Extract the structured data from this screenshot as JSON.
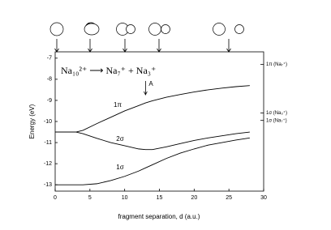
{
  "chart_data": {
    "type": "line",
    "formula": "Na₁₀²⁺ ⟶ Na₇⁺ + Na₃⁺",
    "xlabel": "fragment separation, d (a.u.)",
    "ylabel": "Energy (eV)",
    "x": [
      0,
      2,
      3,
      4,
      6,
      8,
      10,
      12,
      13,
      14,
      16,
      18,
      20,
      22,
      24,
      26,
      28
    ],
    "series": [
      {
        "name": "1π",
        "color": "#000000",
        "values": [
          -10.5,
          -10.5,
          -10.5,
          -10.42,
          -10.1,
          -9.8,
          -9.5,
          -9.25,
          -9.12,
          -9.02,
          -8.85,
          -8.72,
          -8.6,
          -8.5,
          -8.42,
          -8.35,
          -8.3
        ]
      },
      {
        "name": "2σ",
        "color": "#000000",
        "values": [
          -10.5,
          -10.5,
          -10.5,
          -10.58,
          -10.8,
          -11.0,
          -11.15,
          -11.3,
          -11.33,
          -11.33,
          -11.2,
          -11.05,
          -10.9,
          -10.78,
          -10.68,
          -10.58,
          -10.5
        ]
      },
      {
        "name": "1σ",
        "color": "#000000",
        "values": [
          -13,
          -13,
          -13,
          -13,
          -12.95,
          -12.8,
          -12.6,
          -12.35,
          -12.2,
          -12.05,
          -11.75,
          -11.5,
          -11.3,
          -11.12,
          -11.0,
          -10.88,
          -10.78
        ]
      }
    ],
    "right_markers": [
      {
        "label": "1π (Na₇⁺)",
        "value": -7.3
      },
      {
        "label": "1σ (Na₃⁺)",
        "value": -9.6
      },
      {
        "label": "1σ (Na₇⁺)",
        "value": -9.95
      }
    ],
    "arrow_annotation": {
      "text": "A",
      "x": 13
    },
    "xlim": [
      0,
      30
    ],
    "xticks": [
      0,
      5,
      10,
      15,
      20,
      25,
      30
    ],
    "ylim": [
      -13.3,
      -6.7
    ],
    "yticks": [
      -13,
      -12,
      -11,
      -10,
      -9,
      -8,
      -7
    ]
  }
}
